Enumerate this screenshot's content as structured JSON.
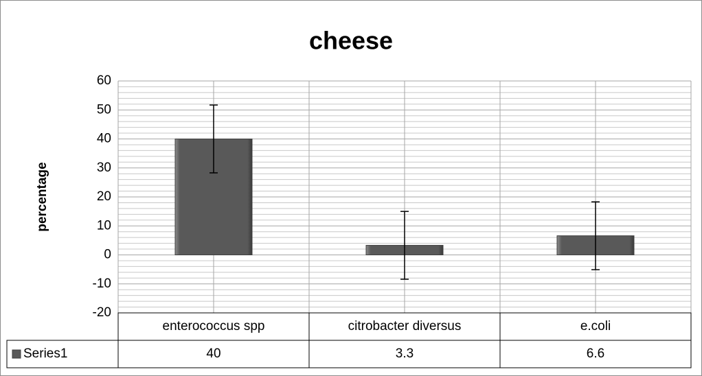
{
  "chart_data": {
    "type": "bar",
    "title": "cheese",
    "y_label": "percentage",
    "categories": [
      "enterococcus spp",
      "citrobacter diversus",
      "e.coli"
    ],
    "series": [
      {
        "name": "Series1",
        "color": "#595959",
        "values": [
          40,
          3.3,
          6.6
        ],
        "errors": [
          11.7,
          11.7,
          11.7
        ]
      }
    ],
    "ylim": [
      -20,
      60
    ],
    "yticks": [
      -20,
      -10,
      0,
      10,
      20,
      30,
      40,
      50,
      60
    ],
    "minor_yticks": [
      -18,
      -16,
      -14,
      -12,
      -8,
      -6,
      -4,
      -2,
      2,
      4,
      6,
      8,
      12,
      14,
      16,
      18,
      22,
      24,
      26,
      28,
      32,
      34,
      36,
      38,
      42,
      44,
      46,
      48,
      52,
      54,
      56,
      58
    ],
    "grid": true,
    "data_table": true
  }
}
